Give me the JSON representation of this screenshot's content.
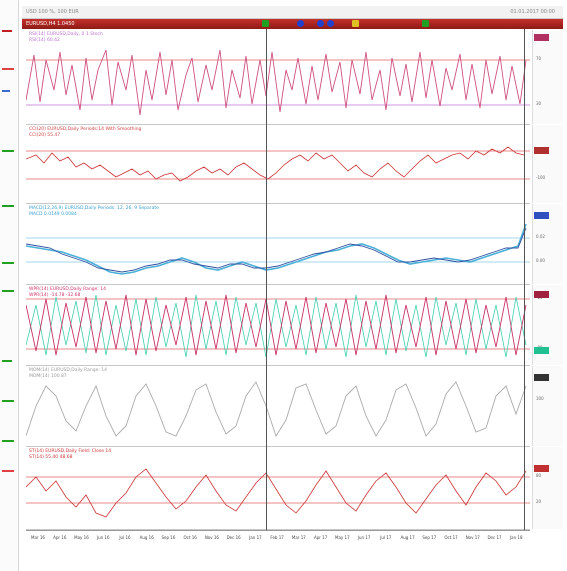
{
  "window": {
    "title": "USD 100 %, 100 EUR",
    "date": "01.01.2017 00:00"
  },
  "toolbar": {
    "label": "EURUSD,H4  1.0450"
  },
  "panels": [
    {
      "title": "RSI(14) EURUSD,Daily, 0.1 Stoch",
      "value": "RSI(14) 60.42",
      "color": "#d05080",
      "levels": [
        "70",
        "30"
      ]
    },
    {
      "title": "CCI(20) EURUSD,Daily  Periods:14  With Smoothing",
      "value": "CCI(20) 55.47",
      "color": "#cc3333",
      "levels": [
        "100",
        "-100"
      ]
    },
    {
      "title": "MACD(12,26,9) EURUSD,Daily  Periods: 12, 26, 9  Separate",
      "value": "MACD 0.0149  0.0084",
      "color": "#4ab0d8",
      "levels": [
        "0.02",
        "0.00"
      ]
    },
    {
      "title": "WPR(14) EURUSD,Daily  Range: 14",
      "value": "WPR(14) -14.78  -32.68",
      "color": "#cc3366",
      "levels": [
        "-20",
        "-80"
      ]
    },
    {
      "title": "MOM(14) EURUSD,Daily  Range: 14",
      "value": "MOM(14) 100.87",
      "color": "#999999",
      "levels": [
        "100"
      ]
    },
    {
      "title": "ST(14) EURUSD,Daily  Field: Close  14",
      "value": "ST(14) 55.40  48.68",
      "color": "#cc3333",
      "levels": [
        "80",
        "20"
      ]
    }
  ],
  "x_labels": [
    "Mar 16",
    "Apr 16",
    "May 16",
    "Jun 16",
    "Jul 16",
    "Aug 16",
    "Sep 16",
    "Oct 16",
    "Nov 16",
    "Dec 16",
    "Jan 17",
    "Feb 17",
    "Mar 17",
    "Apr 17",
    "May 17",
    "Jun 17",
    "Jul 17",
    "Aug 17",
    "Sep 17",
    "Oct 17",
    "Nov 17",
    "Dec 17",
    "Jan 18"
  ],
  "left_strip": {
    "ticks": [
      "-",
      "-",
      "-",
      "-"
    ]
  },
  "colors": {
    "toolbar": "#b02020",
    "grid_line": "#e06060",
    "crosshair": "#555555"
  }
}
